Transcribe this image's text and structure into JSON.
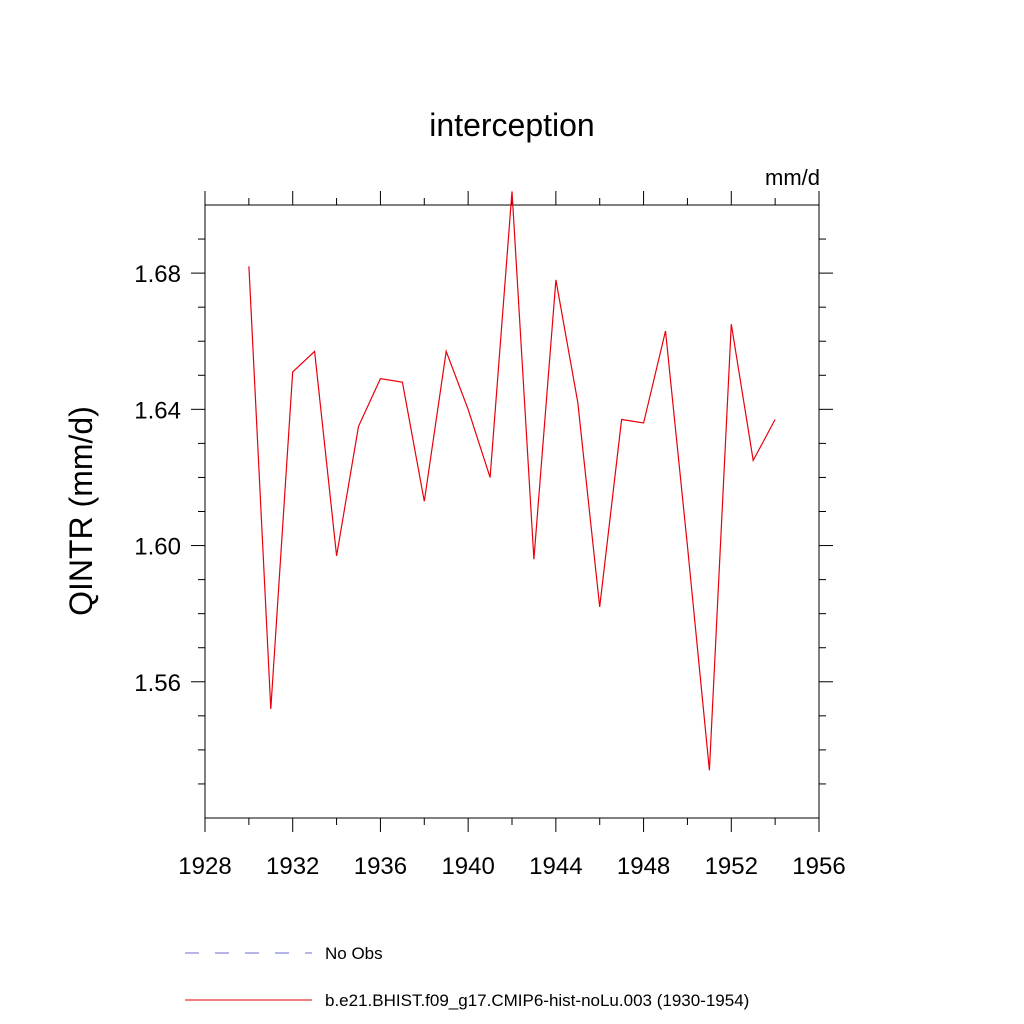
{
  "chart_data": {
    "type": "line",
    "title": "interception",
    "units": "mm/d",
    "ylabel": "QINTR  (mm/d)",
    "xlabel": "",
    "xlim": [
      1928,
      1956
    ],
    "ylim": [
      1.52,
      1.7
    ],
    "xticks": [
      1928,
      1932,
      1936,
      1940,
      1944,
      1948,
      1952,
      1956
    ],
    "xtick_labels": [
      "1928",
      "1932",
      "1936",
      "1940",
      "1944",
      "1948",
      "1952",
      "1956"
    ],
    "yticks": [
      1.56,
      1.6,
      1.64,
      1.68
    ],
    "ytick_labels": [
      "1.56",
      "1.60",
      "1.64",
      "1.68"
    ],
    "y_minor_step": 0.01,
    "x_minor_step": 2,
    "grid": false,
    "legend_position": "bottom",
    "series": [
      {
        "name": "b.e21.BHIST.f09_g17.CMIP6-hist-noLu.003 (1930-1954)",
        "color": "#e8000b",
        "style": "solid",
        "x": [
          1930,
          1931,
          1932,
          1933,
          1934,
          1935,
          1936,
          1937,
          1938,
          1939,
          1940,
          1941,
          1942,
          1943,
          1944,
          1945,
          1946,
          1947,
          1948,
          1949,
          1950,
          1951,
          1952,
          1953,
          1954
        ],
        "y": [
          1.682,
          1.552,
          1.651,
          1.657,
          1.597,
          1.635,
          1.649,
          1.648,
          1.613,
          1.657,
          1.64,
          1.62,
          1.704,
          1.596,
          1.678,
          1.642,
          1.582,
          1.637,
          1.636,
          1.663,
          1.6,
          1.534,
          1.665,
          1.625,
          1.637
        ]
      }
    ],
    "legend": [
      {
        "label": "No Obs",
        "color": "#6a6ad0",
        "style": "dashed"
      },
      {
        "label": "b.e21.BHIST.f09_g17.CMIP6-hist-noLu.003 (1930-1954)",
        "color": "#e8000b",
        "style": "solid"
      }
    ]
  }
}
